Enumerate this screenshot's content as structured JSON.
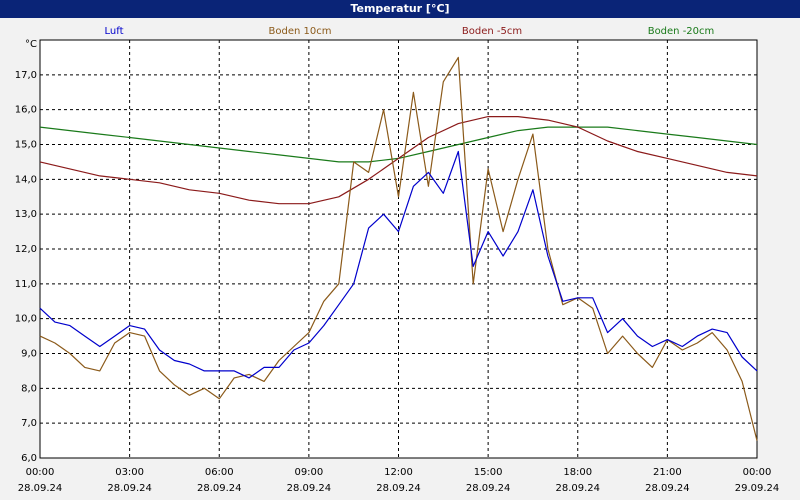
{
  "window": {
    "title": "Temperatur [°C]"
  },
  "chart_data": {
    "type": "line",
    "ylabel": "°C",
    "ylim": [
      6.0,
      18.0
    ],
    "yticks": [
      "6,0",
      "7,0",
      "8,0",
      "9,0",
      "10,0",
      "11,0",
      "12,0",
      "13,0",
      "14,0",
      "15,0",
      "16,0",
      "17,0"
    ],
    "xlim": [
      0,
      24
    ],
    "xticks": [
      {
        "time": "00:00",
        "date": "28.09.24"
      },
      {
        "time": "03:00",
        "date": "28.09.24"
      },
      {
        "time": "06:00",
        "date": "28.09.24"
      },
      {
        "time": "09:00",
        "date": "28.09.24"
      },
      {
        "time": "12:00",
        "date": "28.09.24"
      },
      {
        "time": "15:00",
        "date": "28.09.24"
      },
      {
        "time": "18:00",
        "date": "28.09.24"
      },
      {
        "time": "21:00",
        "date": "28.09.24"
      },
      {
        "time": "00:00",
        "date": "29.09.24"
      }
    ],
    "grid": true,
    "legend": "top",
    "series": [
      {
        "name": "Luft",
        "color": "#0000cc",
        "x": [
          0,
          0.5,
          1,
          1.5,
          2,
          2.5,
          3,
          3.5,
          4,
          4.5,
          5,
          5.5,
          6,
          6.5,
          7,
          7.5,
          8,
          8.5,
          9,
          9.5,
          10,
          10.5,
          11,
          11.5,
          12,
          12.5,
          13,
          13.5,
          14,
          14.5,
          15,
          15.5,
          16,
          16.5,
          17,
          17.5,
          18,
          18.5,
          19,
          19.5,
          20,
          20.5,
          21,
          21.5,
          22,
          22.5,
          23,
          23.5,
          24
        ],
        "values": [
          10.3,
          9.9,
          9.8,
          9.5,
          9.2,
          9.5,
          9.8,
          9.7,
          9.1,
          8.8,
          8.7,
          8.5,
          8.5,
          8.5,
          8.3,
          8.6,
          8.6,
          9.1,
          9.3,
          9.8,
          10.4,
          11.0,
          12.6,
          13.0,
          12.5,
          13.8,
          14.2,
          13.6,
          14.8,
          11.5,
          12.5,
          11.8,
          12.5,
          13.7,
          11.8,
          10.5,
          10.6,
          10.6,
          9.6,
          10.0,
          9.5,
          9.2,
          9.4,
          9.2,
          9.5,
          9.7,
          9.6,
          8.9,
          8.5
        ]
      },
      {
        "name": "Boden 10cm",
        "color": "#8b5a1a",
        "x": [
          0,
          0.5,
          1,
          1.5,
          2,
          2.5,
          3,
          3.5,
          4,
          4.5,
          5,
          5.5,
          6,
          6.5,
          7,
          7.5,
          8,
          8.5,
          9,
          9.5,
          10,
          10.5,
          11,
          11.5,
          12,
          12.5,
          13,
          13.5,
          14,
          14.5,
          15,
          15.5,
          16,
          16.5,
          17,
          17.5,
          18,
          18.5,
          19,
          19.5,
          20,
          20.5,
          21,
          21.5,
          22,
          22.5,
          23,
          23.5,
          24
        ],
        "values": [
          9.5,
          9.3,
          9.0,
          8.6,
          8.5,
          9.3,
          9.6,
          9.5,
          8.5,
          8.1,
          7.8,
          8.0,
          7.7,
          8.3,
          8.4,
          8.2,
          8.8,
          9.2,
          9.6,
          10.5,
          11.0,
          14.5,
          14.2,
          16.0,
          13.5,
          16.5,
          13.8,
          16.8,
          17.5,
          11.0,
          14.3,
          12.5,
          14.0,
          15.3,
          12.0,
          10.4,
          10.6,
          10.3,
          9.0,
          9.5,
          9.0,
          8.6,
          9.4,
          9.1,
          9.3,
          9.6,
          9.1,
          8.2,
          6.5
        ]
      },
      {
        "name": "Boden -5cm",
        "color": "#8b1a1a",
        "x": [
          0,
          1,
          2,
          3,
          4,
          5,
          6,
          7,
          8,
          9,
          10,
          11,
          12,
          13,
          14,
          15,
          16,
          17,
          18,
          19,
          20,
          21,
          22,
          23,
          24
        ],
        "values": [
          14.5,
          14.3,
          14.1,
          14.0,
          13.9,
          13.7,
          13.6,
          13.4,
          13.3,
          13.3,
          13.5,
          14.0,
          14.6,
          15.2,
          15.6,
          15.8,
          15.8,
          15.7,
          15.5,
          15.1,
          14.8,
          14.6,
          14.4,
          14.2,
          14.1
        ]
      },
      {
        "name": "Boden -20cm",
        "color": "#1a7a1a",
        "x": [
          0,
          1,
          2,
          3,
          4,
          5,
          6,
          7,
          8,
          9,
          10,
          11,
          12,
          13,
          14,
          15,
          16,
          17,
          18,
          19,
          20,
          21,
          22,
          23,
          24
        ],
        "values": [
          15.5,
          15.4,
          15.3,
          15.2,
          15.1,
          15.0,
          14.9,
          14.8,
          14.7,
          14.6,
          14.5,
          14.5,
          14.6,
          14.8,
          15.0,
          15.2,
          15.4,
          15.5,
          15.5,
          15.5,
          15.4,
          15.3,
          15.2,
          15.1,
          15.0
        ]
      }
    ]
  }
}
